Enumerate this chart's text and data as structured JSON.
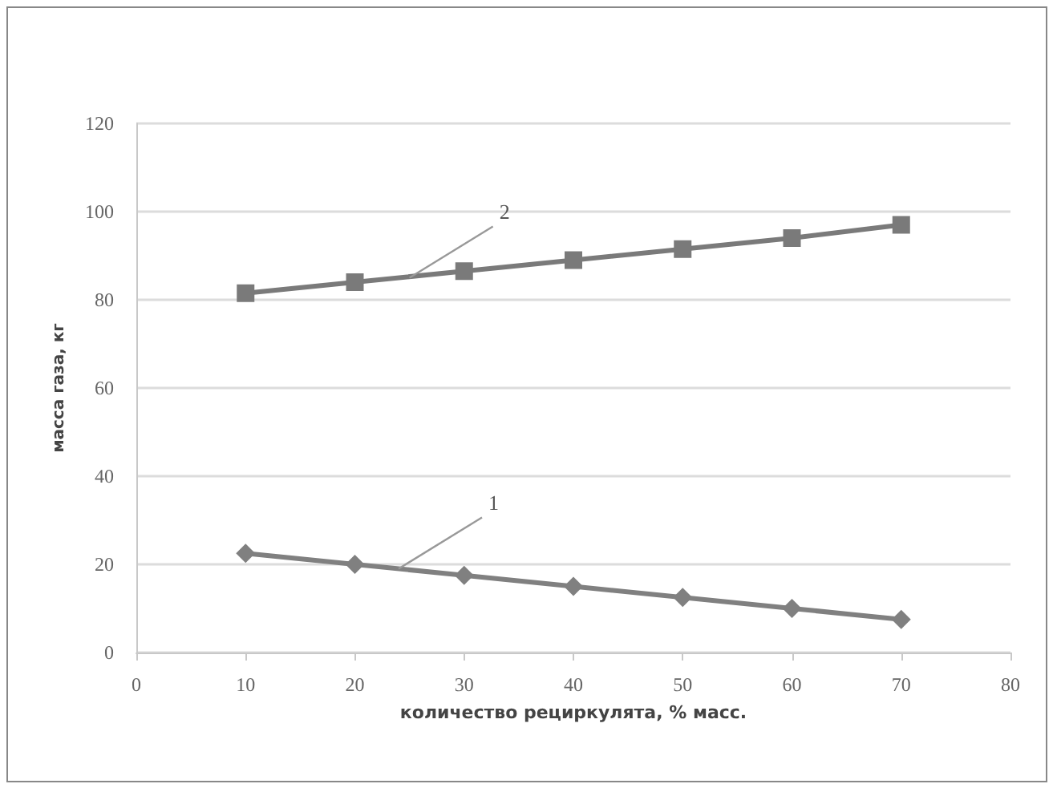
{
  "chart_data": {
    "type": "line",
    "xlabel": "количество рециркулята, % масс.",
    "ylabel": "масса газа, кг",
    "x": [
      10,
      20,
      30,
      40,
      50,
      60,
      70
    ],
    "series": [
      {
        "values": [
          22.5,
          20,
          17.5,
          15,
          12.5,
          10,
          7.5
        ],
        "color": "#808080",
        "marker": "diamond"
      },
      {
        "values": [
          81.5,
          84,
          86.5,
          89,
          91.5,
          94,
          97
        ],
        "color": "#7a7a7a",
        "marker": "square"
      }
    ],
    "annotations": [
      {
        "text": "1",
        "x": 24,
        "y": 19
      },
      {
        "text": "2",
        "x": 25,
        "y": 85
      }
    ],
    "xlim": [
      0,
      80
    ],
    "xticks": [
      0,
      10,
      20,
      30,
      40,
      50,
      60,
      70,
      80
    ],
    "ylim": [
      0,
      120
    ],
    "yticks": [
      0,
      20,
      40,
      60,
      80,
      100,
      120
    ],
    "grid": "y",
    "line_style": "solid"
  }
}
